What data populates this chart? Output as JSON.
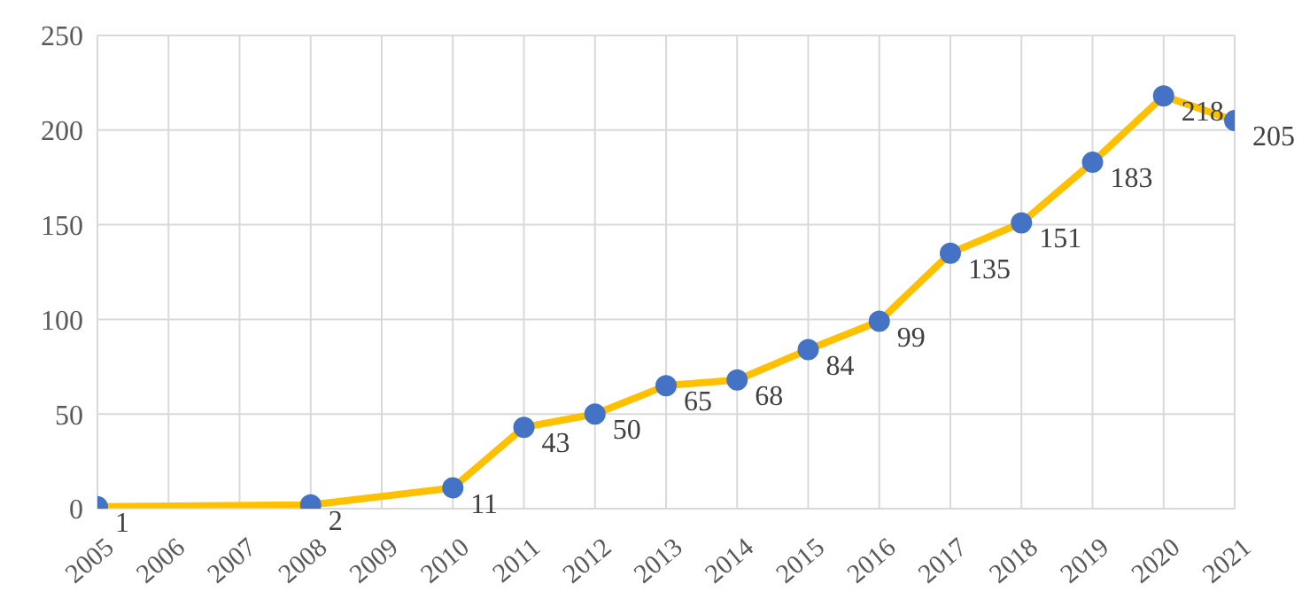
{
  "chart_data": {
    "type": "line",
    "x": [
      2005,
      2008,
      2010,
      2011,
      2012,
      2013,
      2014,
      2015,
      2016,
      2017,
      2018,
      2019,
      2020,
      2021
    ],
    "series": [
      {
        "color": "#ffc000",
        "values": [
          1,
          2,
          11,
          43,
          50,
          65,
          68,
          84,
          99,
          135,
          151,
          183,
          218,
          205
        ]
      }
    ],
    "xlim": [
      2005,
      2021
    ],
    "xticks": [
      2005,
      2006,
      2007,
      2008,
      2009,
      2010,
      2011,
      2012,
      2013,
      2014,
      2015,
      2016,
      2017,
      2018,
      2019,
      2020,
      2021
    ],
    "ylim": [
      0,
      250
    ],
    "yticks": [
      0,
      50,
      100,
      150,
      200,
      250
    ],
    "grid": true,
    "marker": "circle",
    "line_style": "solid",
    "data_labels": true,
    "legend": false
  }
}
